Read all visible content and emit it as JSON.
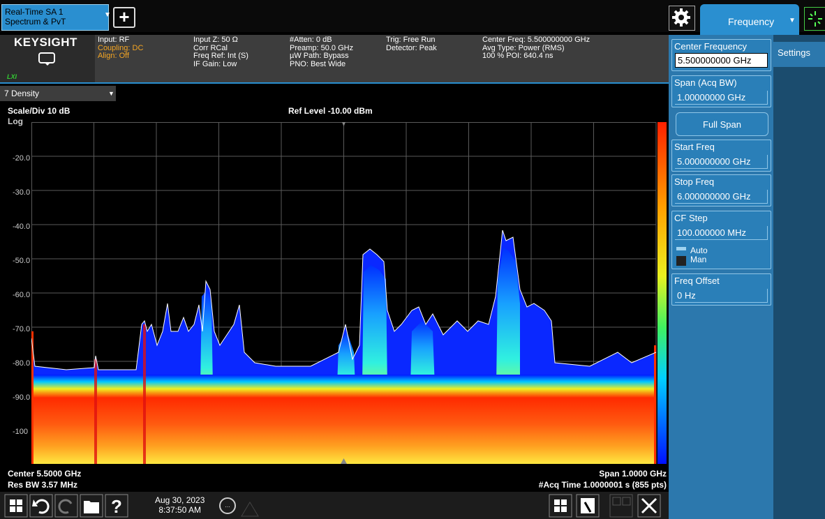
{
  "top_bar": {
    "mode_tab": [
      "Real-Time SA 1",
      "Spectrum & PvT"
    ],
    "menu_tab": "Frequency"
  },
  "info_bar": {
    "logo": "KEYSIGHT",
    "badge": "LXI",
    "columns": [
      [
        "Input: RF",
        "Coupling: DC",
        "Align: Off"
      ],
      [
        "Input Z: 50 Ω",
        "Corr RCal",
        "Freq Ref: Int (S)",
        "IF Gain: Low"
      ],
      [
        "#Atten: 0 dB",
        "Preamp: 50.0 GHz",
        "µW Path: Bypass",
        "PNO: Best Wide"
      ],
      [
        "Trig: Free Run",
        "Detector: Peak"
      ],
      [
        "Center Freq: 5.500000000 GHz",
        "Avg Type: Power (RMS)",
        "100 % POI: 640.4 ns"
      ]
    ]
  },
  "display": {
    "trace_menu": "7 Density",
    "scale": "Scale/Div 10 dB",
    "ref_level": "Ref Level -10.00 dBm",
    "scale_type": "Log",
    "y_labels": [
      "-20.0",
      "-30.0",
      "-40.0",
      "-50.0",
      "-60.0",
      "-70.0",
      "-80.0",
      "-90.0",
      "-100"
    ],
    "center": "Center 5.5000 GHz",
    "span": "Span 1.0000 GHz",
    "res_bw": "Res BW 3.57 MHz",
    "acq_time": "#Acq Time 1.0000001 s (855 pts)"
  },
  "softkeys": [
    {
      "label": "Center Frequency",
      "value": "5.500000000 GHz"
    },
    {
      "label": "Span (Acq BW)",
      "value": "1.00000000 GHz"
    },
    {
      "label": "Full Span"
    },
    {
      "label": "Start Freq",
      "value": "5.000000000 GHz"
    },
    {
      "label": "Stop Freq",
      "value": "6.000000000 GHz"
    },
    {
      "label": "CF Step",
      "value": "100.000000 MHz",
      "options": [
        "Auto",
        "Man"
      ]
    },
    {
      "label": "Freq Offset",
      "value": "0 Hz"
    }
  ],
  "side_tab": "Settings",
  "taskbar": {
    "date": "Aug 30, 2023",
    "time": "8:37:50 AM"
  }
}
